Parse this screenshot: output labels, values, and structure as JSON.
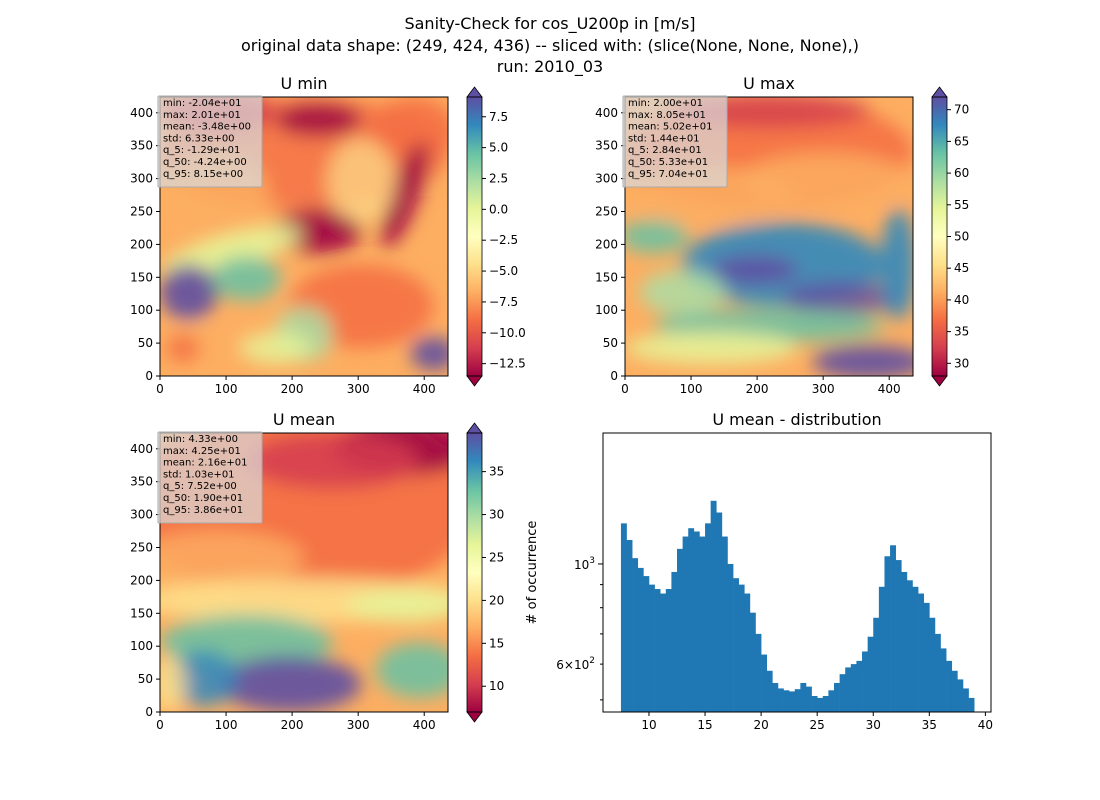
{
  "figure": {
    "title_lines": [
      "Sanity-Check for cos_U200p in [m/s]",
      "original data shape: (249, 424, 436) -- sliced with: (slice(None, None, None),)",
      "run: 2010_03"
    ]
  },
  "chart_data": [
    {
      "type": "heatmap",
      "title": "U min",
      "colormap": "Spectral",
      "x_ticks": [
        "0",
        "100",
        "200",
        "300",
        "400"
      ],
      "y_ticks": [
        "0",
        "50",
        "100",
        "150",
        "200",
        "250",
        "300",
        "350",
        "400"
      ],
      "xlim": [
        0,
        436
      ],
      "ylim": [
        0,
        424
      ],
      "colorbar": {
        "ticks": [
          "7.5",
          "5.0",
          "2.5",
          "0.0",
          "−2.5",
          "−5.0",
          "−7.5",
          "−10.0",
          "−12.5"
        ],
        "tick_values": [
          7.5,
          5.0,
          2.5,
          0.0,
          -2.5,
          -5.0,
          -7.5,
          -10.0,
          -12.5
        ],
        "range": [
          -13.5,
          9.1
        ],
        "extend": "both"
      },
      "stats": [
        "min: -2.04e+01",
        "max: 2.01e+01",
        "mean: -3.48e+00",
        "std: 6.33e+00",
        "q_5: -1.29e+01",
        "q_50: -4.24e+00",
        "q_95: 8.15e+00"
      ]
    },
    {
      "type": "heatmap",
      "title": "U max",
      "colormap": "Spectral",
      "x_ticks": [
        "0",
        "100",
        "200",
        "300",
        "400"
      ],
      "y_ticks": [
        "0",
        "50",
        "100",
        "150",
        "200",
        "250",
        "300",
        "350",
        "400"
      ],
      "xlim": [
        0,
        436
      ],
      "ylim": [
        0,
        424
      ],
      "colorbar": {
        "ticks": [
          "70",
          "65",
          "60",
          "55",
          "50",
          "45",
          "40",
          "35",
          "30"
        ],
        "tick_values": [
          70,
          65,
          60,
          55,
          50,
          45,
          40,
          35,
          30
        ],
        "range": [
          28,
          72
        ],
        "extend": "both"
      },
      "stats": [
        "min: 2.00e+01",
        "max: 8.05e+01",
        "mean: 5.02e+01",
        "std: 1.44e+01",
        "q_5: 2.84e+01",
        "q_50: 5.33e+01",
        "q_95: 7.04e+01"
      ]
    },
    {
      "type": "heatmap",
      "title": "U mean",
      "colormap": "Spectral",
      "x_ticks": [
        "0",
        "100",
        "200",
        "300",
        "400"
      ],
      "y_ticks": [
        "0",
        "50",
        "100",
        "150",
        "200",
        "250",
        "300",
        "350",
        "400"
      ],
      "xlim": [
        0,
        436
      ],
      "ylim": [
        0,
        424
      ],
      "colorbar": {
        "ticks": [
          "35",
          "30",
          "25",
          "20",
          "15",
          "10"
        ],
        "tick_values": [
          35,
          30,
          25,
          20,
          15,
          10
        ],
        "range": [
          7,
          39.5
        ],
        "extend": "both"
      },
      "stats": [
        "min: 4.33e+00",
        "max: 4.25e+01",
        "mean: 2.16e+01",
        "std: 1.03e+01",
        "q_5: 7.52e+00",
        "q_50: 1.90e+01",
        "q_95: 3.86e+01"
      ]
    },
    {
      "type": "bar",
      "title": "U mean - distribution",
      "ylabel": "# of occurrence",
      "y_scale": "log",
      "color": "#1f77b4",
      "x_ticks": [
        "10",
        "15",
        "20",
        "25",
        "30",
        "35",
        "40"
      ],
      "x_tick_values": [
        10,
        15,
        20,
        25,
        30,
        35,
        40
      ],
      "y_major_tick": "10^3",
      "y_minor_label": "6×10^2",
      "xlim": [
        5.9,
        40.5
      ],
      "ylim": [
        470,
        1950
      ],
      "bins": [
        [
          7.5,
          1230
        ],
        [
          8.0,
          1130
        ],
        [
          8.5,
          1030
        ],
        [
          9.0,
          980
        ],
        [
          9.5,
          940
        ],
        [
          10.0,
          900
        ],
        [
          10.5,
          880
        ],
        [
          11.0,
          860
        ],
        [
          11.5,
          880
        ],
        [
          12.0,
          960
        ],
        [
          12.5,
          1080
        ],
        [
          13.0,
          1150
        ],
        [
          13.5,
          1200
        ],
        [
          14.0,
          1180
        ],
        [
          14.5,
          1150
        ],
        [
          15.0,
          1230
        ],
        [
          15.5,
          1380
        ],
        [
          16.0,
          1300
        ],
        [
          16.5,
          1150
        ],
        [
          17.0,
          1000
        ],
        [
          17.5,
          930
        ],
        [
          18.0,
          900
        ],
        [
          18.5,
          860
        ],
        [
          19.0,
          780
        ],
        [
          19.5,
          700
        ],
        [
          20.0,
          630
        ],
        [
          20.5,
          580
        ],
        [
          21.0,
          545
        ],
        [
          21.5,
          530
        ],
        [
          22.0,
          525
        ],
        [
          22.5,
          522
        ],
        [
          23.0,
          528
        ],
        [
          23.5,
          545
        ],
        [
          24.0,
          535
        ],
        [
          24.5,
          510
        ],
        [
          25.0,
          505
        ],
        [
          25.5,
          510
        ],
        [
          26.0,
          525
        ],
        [
          26.5,
          545
        ],
        [
          27.0,
          570
        ],
        [
          27.5,
          590
        ],
        [
          28.0,
          600
        ],
        [
          28.5,
          610
        ],
        [
          29.0,
          640
        ],
        [
          29.5,
          690
        ],
        [
          30.0,
          760
        ],
        [
          30.5,
          890
        ],
        [
          31.0,
          1040
        ],
        [
          31.5,
          1100
        ],
        [
          32.0,
          1020
        ],
        [
          32.5,
          960
        ],
        [
          33.0,
          920
        ],
        [
          33.5,
          890
        ],
        [
          34.0,
          860
        ],
        [
          34.5,
          820
        ],
        [
          35.0,
          760
        ],
        [
          35.5,
          700
        ],
        [
          36.0,
          650
        ],
        [
          36.5,
          610
        ],
        [
          37.0,
          580
        ],
        [
          37.5,
          555
        ],
        [
          38.0,
          530
        ],
        [
          38.5,
          505
        ]
      ]
    }
  ]
}
